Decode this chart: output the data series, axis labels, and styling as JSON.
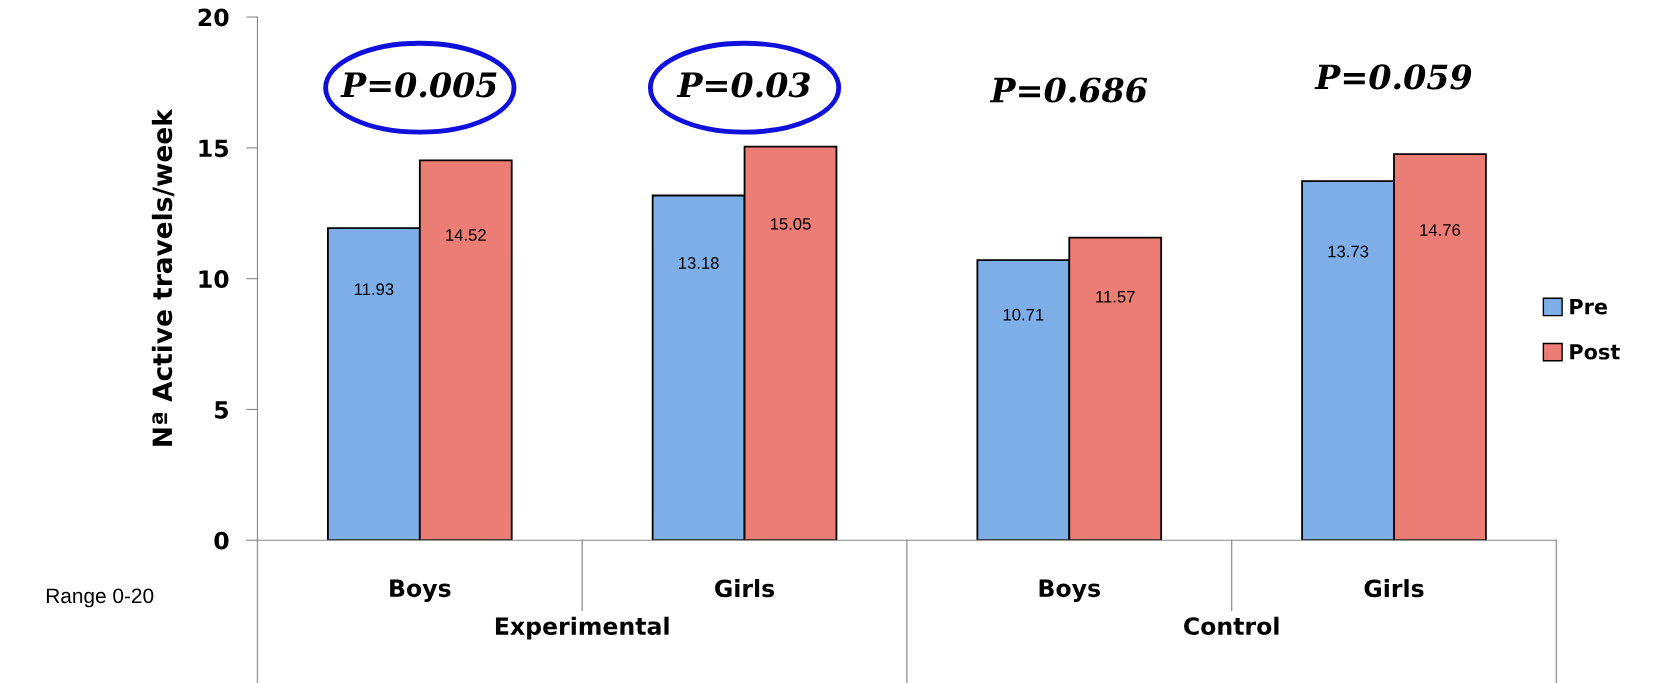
{
  "chart_data": {
    "type": "bar",
    "ylabel": "Nª Active travels/week",
    "categories": [
      "Boys",
      "Girls",
      "Boys",
      "Girls"
    ],
    "series": [
      {
        "name": "Pre",
        "color": "#7eaee8",
        "values": [
          11.93,
          13.18,
          10.71,
          13.73
        ]
      },
      {
        "name": "Post",
        "color": "#ec7d74",
        "values": [
          14.52,
          15.05,
          11.57,
          14.76
        ]
      }
    ],
    "ylim": [
      0,
      20
    ],
    "yticks": [
      0,
      5,
      10,
      15,
      20
    ],
    "grid": false,
    "legend": "right",
    "data_labels": true,
    "annotations": [
      "P=0.005",
      "P=0.03",
      "P=0.686",
      "P=0.059",
      "Experimental",
      "Control",
      "Range 0-20"
    ]
  }
}
